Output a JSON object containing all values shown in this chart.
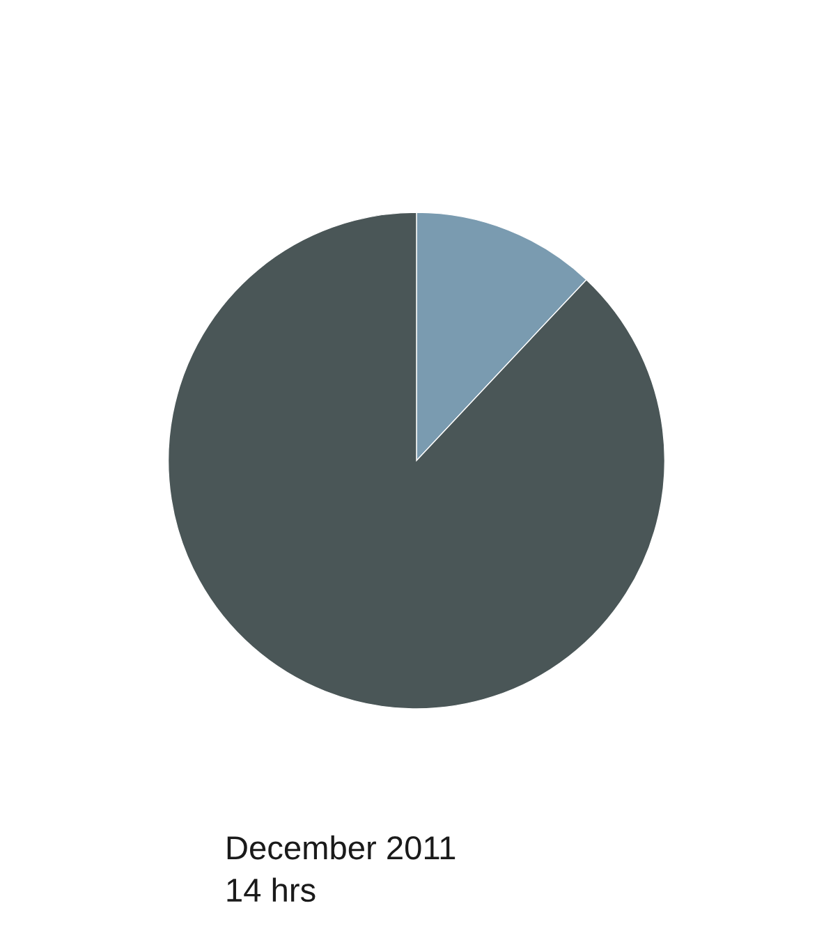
{
  "chart_data": {
    "type": "pie",
    "categories": [
      null,
      null
    ],
    "values": [
      12,
      88
    ],
    "colors": [
      "#7a9bb0",
      "#4a5657"
    ],
    "annotations": [
      "December 2011",
      "14 hrs"
    ]
  }
}
